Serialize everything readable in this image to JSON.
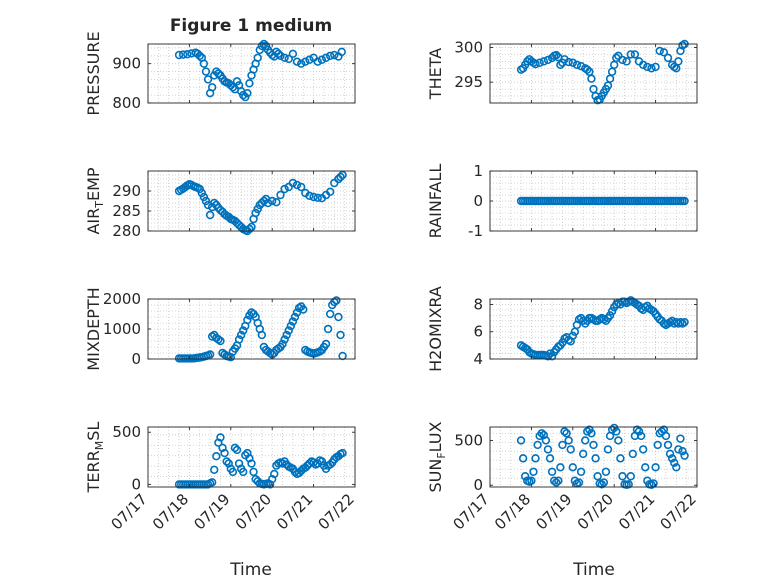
{
  "figure_title": "Figure 1 medium",
  "colors": {
    "marker": "#0072BD",
    "axes": "#262626",
    "grid": "#c8c8c8"
  },
  "x_axis": {
    "label": "Time",
    "tick_labels": [
      "07/17",
      "07/18",
      "07/19",
      "07/20",
      "07/21",
      "07/22"
    ],
    "range_days": [
      0,
      5
    ]
  },
  "chart_data": [
    {
      "type": "scatter",
      "name": "pressure",
      "ylabel": "PRESSURE",
      "ylim": [
        800,
        950
      ],
      "yticks": [
        800,
        900
      ],
      "ytick_labels": [
        "800",
        "900"
      ],
      "x": [
        0.75,
        0.85,
        0.95,
        1.05,
        1.15,
        1.2,
        1.25,
        1.3,
        1.35,
        1.4,
        1.45,
        1.5,
        1.55,
        1.6,
        1.65,
        1.7,
        1.75,
        1.8,
        1.85,
        1.9,
        1.95,
        2.0,
        2.05,
        2.1,
        2.15,
        2.2,
        2.25,
        2.3,
        2.35,
        2.4,
        2.45,
        2.5,
        2.55,
        2.6,
        2.65,
        2.7,
        2.75,
        2.8,
        2.85,
        2.9,
        2.95,
        3.0,
        3.05,
        3.1,
        3.15,
        3.2,
        3.3,
        3.4,
        3.5,
        3.6,
        3.7,
        3.8,
        3.9,
        4.0,
        4.1,
        4.2,
        4.3,
        4.4,
        4.5,
        4.6,
        4.68
      ],
      "y": [
        922,
        923,
        924,
        926,
        928,
        925,
        920,
        915,
        900,
        880,
        860,
        825,
        840,
        870,
        880,
        875,
        870,
        862,
        855,
        852,
        850,
        845,
        840,
        835,
        855,
        845,
        830,
        820,
        815,
        825,
        850,
        870,
        885,
        900,
        915,
        935,
        945,
        950,
        945,
        935,
        928,
        922,
        918,
        930,
        925,
        920,
        915,
        912,
        925,
        905,
        900,
        905,
        910,
        915,
        905,
        910,
        915,
        920,
        922,
        918,
        930
      ]
    },
    {
      "type": "scatter",
      "name": "theta",
      "ylabel": "THETA",
      "ylim": [
        292,
        300.5
      ],
      "yticks": [
        295,
        300
      ],
      "ytick_labels": [
        "295",
        "300"
      ],
      "x": [
        0.75,
        0.8,
        0.85,
        0.9,
        0.95,
        1.0,
        1.05,
        1.1,
        1.2,
        1.3,
        1.4,
        1.5,
        1.55,
        1.6,
        1.65,
        1.7,
        1.75,
        1.8,
        1.9,
        2.0,
        2.1,
        2.2,
        2.3,
        2.35,
        2.4,
        2.45,
        2.5,
        2.55,
        2.6,
        2.65,
        2.7,
        2.75,
        2.8,
        2.85,
        2.9,
        2.95,
        3.0,
        3.05,
        3.1,
        3.2,
        3.3,
        3.4,
        3.5,
        3.6,
        3.7,
        3.8,
        3.9,
        4.0,
        4.1,
        4.2,
        4.3,
        4.4,
        4.45,
        4.5,
        4.55,
        4.6,
        4.65,
        4.7
      ],
      "y": [
        296.8,
        297,
        297.5,
        298,
        298.3,
        298,
        297.8,
        297.6,
        297.8,
        298,
        298.2,
        298.5,
        298.8,
        298.9,
        298.6,
        297.5,
        297.8,
        298.3,
        297.9,
        297.8,
        297.5,
        297.3,
        297,
        296.8,
        296.5,
        295.5,
        294,
        293,
        292.4,
        292.5,
        293,
        293.5,
        294,
        294.5,
        295.5,
        296.5,
        297.5,
        298.5,
        298.8,
        298.2,
        298,
        299,
        299,
        298,
        297.5,
        297.2,
        297,
        297.2,
        299.5,
        299.3,
        298.5,
        297.5,
        297.2,
        297,
        298,
        299.5,
        300.3,
        300.5
      ]
    },
    {
      "type": "scatter",
      "name": "air_temp",
      "ylabel": "AIR_TEMP",
      "ylim": [
        280,
        295
      ],
      "yticks": [
        280,
        285,
        290
      ],
      "ytick_labels": [
        "280",
        "285",
        "290"
      ],
      "x": [
        0.75,
        0.8,
        0.85,
        0.9,
        0.95,
        1.0,
        1.05,
        1.1,
        1.15,
        1.2,
        1.25,
        1.3,
        1.35,
        1.4,
        1.45,
        1.5,
        1.55,
        1.6,
        1.65,
        1.7,
        1.75,
        1.8,
        1.85,
        1.9,
        1.95,
        2.0,
        2.05,
        2.1,
        2.15,
        2.2,
        2.25,
        2.3,
        2.35,
        2.4,
        2.45,
        2.5,
        2.55,
        2.6,
        2.65,
        2.7,
        2.75,
        2.8,
        2.85,
        2.9,
        3.0,
        3.1,
        3.2,
        3.3,
        3.4,
        3.5,
        3.6,
        3.7,
        3.8,
        3.9,
        4.0,
        4.1,
        4.2,
        4.3,
        4.4,
        4.5,
        4.6,
        4.65,
        4.7
      ],
      "y": [
        290,
        290.3,
        290.6,
        291,
        291.4,
        291.7,
        291.5,
        291.2,
        291,
        290.8,
        290.5,
        289.5,
        288.5,
        287.5,
        286.5,
        284,
        286,
        287,
        286.5,
        285.8,
        285.2,
        284.8,
        284.2,
        283.8,
        283.5,
        283,
        282.8,
        282.5,
        282,
        281.5,
        281,
        280.5,
        280.2,
        280,
        280.5,
        281,
        283,
        284.5,
        285.5,
        286.5,
        287,
        287.5,
        288,
        287,
        287.5,
        287.2,
        289,
        290.5,
        291,
        292,
        291.5,
        291,
        289.5,
        288.8,
        288.5,
        288.3,
        288.2,
        289,
        289.8,
        292,
        293,
        293.5,
        294
      ]
    },
    {
      "type": "scatter",
      "name": "rainfall",
      "ylabel": "RAINFALL",
      "ylim": [
        -1,
        1
      ],
      "yticks": [
        -1,
        0,
        1
      ],
      "ytick_labels": [
        "-1",
        "0",
        "1"
      ],
      "x_range": [
        0.75,
        4.7
      ],
      "count": 80,
      "constant": 0
    },
    {
      "type": "scatter",
      "name": "mixdepth",
      "ylabel": "MIXDEPTH",
      "ylim": [
        0,
        2000
      ],
      "yticks": [
        0,
        1000,
        2000
      ],
      "ytick_labels": [
        "0",
        "1000",
        "2000"
      ],
      "x": [
        0.75,
        0.8,
        0.85,
        0.9,
        0.95,
        1.0,
        1.05,
        1.1,
        1.15,
        1.2,
        1.25,
        1.3,
        1.35,
        1.4,
        1.45,
        1.5,
        1.55,
        1.6,
        1.65,
        1.7,
        1.75,
        1.8,
        1.85,
        1.9,
        1.95,
        2.0,
        2.05,
        2.1,
        2.15,
        2.2,
        2.25,
        2.3,
        2.35,
        2.4,
        2.45,
        2.5,
        2.55,
        2.6,
        2.65,
        2.7,
        2.75,
        2.8,
        2.85,
        2.9,
        2.95,
        3.0,
        3.05,
        3.1,
        3.15,
        3.2,
        3.25,
        3.3,
        3.35,
        3.4,
        3.45,
        3.5,
        3.55,
        3.6,
        3.65,
        3.7,
        3.75,
        3.8,
        3.85,
        3.9,
        3.95,
        4.0,
        4.05,
        4.1,
        4.15,
        4.2,
        4.25,
        4.3,
        4.35,
        4.4,
        4.45,
        4.5,
        4.55,
        4.6,
        4.65,
        4.7
      ],
      "y": [
        20,
        20,
        20,
        20,
        20,
        20,
        20,
        20,
        30,
        40,
        50,
        60,
        80,
        100,
        120,
        150,
        750,
        800,
        700,
        650,
        600,
        200,
        150,
        100,
        80,
        60,
        250,
        350,
        450,
        650,
        800,
        950,
        1100,
        1300,
        1450,
        1550,
        1500,
        1400,
        1200,
        1000,
        800,
        400,
        300,
        250,
        200,
        150,
        200,
        300,
        350,
        400,
        500,
        650,
        800,
        950,
        1100,
        1250,
        1400,
        1550,
        1700,
        1750,
        1650,
        300,
        250,
        220,
        200,
        180,
        200,
        220,
        250,
        300,
        400,
        500,
        1000,
        1500,
        1800,
        1900,
        1950,
        1400,
        800,
        100
      ]
    },
    {
      "type": "scatter",
      "name": "h2omixra",
      "ylabel": "H2OMIXRA",
      "ylim": [
        4,
        8.4
      ],
      "yticks": [
        4,
        6,
        8
      ],
      "ytick_labels": [
        "4",
        "6",
        "8"
      ],
      "x": [
        0.75,
        0.8,
        0.85,
        0.9,
        0.95,
        1.0,
        1.05,
        1.1,
        1.15,
        1.2,
        1.25,
        1.3,
        1.35,
        1.4,
        1.45,
        1.5,
        1.55,
        1.6,
        1.65,
        1.7,
        1.75,
        1.8,
        1.85,
        1.9,
        1.95,
        2.0,
        2.05,
        2.1,
        2.15,
        2.2,
        2.25,
        2.3,
        2.35,
        2.4,
        2.45,
        2.5,
        2.55,
        2.6,
        2.65,
        2.7,
        2.75,
        2.8,
        2.85,
        2.9,
        2.95,
        3.0,
        3.05,
        3.1,
        3.15,
        3.2,
        3.25,
        3.3,
        3.35,
        3.4,
        3.45,
        3.5,
        3.55,
        3.6,
        3.65,
        3.7,
        3.75,
        3.8,
        3.85,
        3.9,
        3.95,
        4.0,
        4.05,
        4.1,
        4.15,
        4.2,
        4.25,
        4.3,
        4.35,
        4.4,
        4.45,
        4.5,
        4.55,
        4.6,
        4.65,
        4.7
      ],
      "y": [
        5,
        4.9,
        4.8,
        4.7,
        4.5,
        4.4,
        4.35,
        4.3,
        4.3,
        4.3,
        4.3,
        4.3,
        4.25,
        4.2,
        4.4,
        4.2,
        4.5,
        4.7,
        4.9,
        5,
        5.2,
        5.5,
        5.6,
        5.4,
        5.3,
        5.7,
        6,
        6.5,
        6.9,
        7,
        6.8,
        6.6,
        6.8,
        7,
        7,
        6.9,
        6.8,
        6.8,
        6.9,
        7,
        6.9,
        6.8,
        7,
        7.2,
        7.5,
        7.8,
        8,
        8.1,
        8,
        8.2,
        8.2,
        8.1,
        8.2,
        8.3,
        8.2,
        8.1,
        8,
        7.9,
        7.7,
        7.6,
        7.8,
        7.9,
        7.7,
        7.6,
        7.5,
        7.3,
        7.1,
        6.9,
        6.8,
        6.6,
        6.5,
        6.6,
        6.7,
        6.8,
        6.6,
        6.7,
        6.6,
        6.7,
        6.6,
        6.7
      ]
    },
    {
      "type": "scatter",
      "name": "terr_msl",
      "ylabel": "TERR_MSL",
      "ylim": [
        -25,
        550
      ],
      "yticks": [
        0,
        500
      ],
      "ytick_labels": [
        "0",
        "500"
      ],
      "x": [
        0.75,
        0.8,
        0.85,
        0.9,
        0.95,
        1.0,
        1.05,
        1.1,
        1.15,
        1.2,
        1.25,
        1.3,
        1.35,
        1.4,
        1.45,
        1.5,
        1.55,
        1.6,
        1.65,
        1.7,
        1.75,
        1.8,
        1.85,
        1.9,
        1.95,
        2.0,
        2.05,
        2.1,
        2.15,
        2.2,
        2.25,
        2.3,
        2.35,
        2.4,
        2.45,
        2.5,
        2.55,
        2.6,
        2.65,
        2.7,
        2.75,
        2.8,
        2.85,
        2.9,
        2.95,
        3.0,
        3.05,
        3.1,
        3.15,
        3.2,
        3.25,
        3.3,
        3.35,
        3.4,
        3.45,
        3.5,
        3.55,
        3.6,
        3.65,
        3.7,
        3.75,
        3.8,
        3.85,
        3.9,
        3.95,
        4.0,
        4.05,
        4.1,
        4.15,
        4.2,
        4.25,
        4.3,
        4.35,
        4.4,
        4.45,
        4.5,
        4.55,
        4.6,
        4.65,
        4.7
      ],
      "y": [
        0,
        0,
        0,
        0,
        0,
        0,
        0,
        0,
        0,
        0,
        0,
        0,
        0,
        0,
        0,
        10,
        20,
        140,
        270,
        400,
        450,
        350,
        300,
        220,
        200,
        150,
        120,
        350,
        330,
        200,
        150,
        120,
        280,
        300,
        250,
        200,
        120,
        50,
        30,
        10,
        5,
        0,
        5,
        10,
        0,
        50,
        100,
        180,
        200,
        210,
        200,
        220,
        190,
        170,
        160,
        150,
        120,
        100,
        110,
        130,
        150,
        160,
        180,
        200,
        220,
        210,
        190,
        200,
        230,
        220,
        180,
        150,
        180,
        190,
        210,
        240,
        260,
        270,
        290,
        300
      ]
    },
    {
      "type": "scatter",
      "name": "sun_flux",
      "ylabel": "SUN_FLUX",
      "ylim": [
        -20,
        650
      ],
      "yticks": [
        0,
        500
      ],
      "ytick_labels": [
        "0",
        "500"
      ],
      "x": [
        0.75,
        0.8,
        0.85,
        0.9,
        0.95,
        1.0,
        1.05,
        1.1,
        1.15,
        1.2,
        1.25,
        1.3,
        1.35,
        1.4,
        1.45,
        1.5,
        1.55,
        1.6,
        1.65,
        1.7,
        1.75,
        1.8,
        1.85,
        1.9,
        1.95,
        2.0,
        2.05,
        2.1,
        2.15,
        2.2,
        2.25,
        2.3,
        2.35,
        2.4,
        2.45,
        2.5,
        2.55,
        2.6,
        2.65,
        2.7,
        2.75,
        2.8,
        2.85,
        2.9,
        2.95,
        3.0,
        3.05,
        3.1,
        3.15,
        3.2,
        3.25,
        3.3,
        3.35,
        3.4,
        3.45,
        3.5,
        3.55,
        3.6,
        3.65,
        3.7,
        3.75,
        3.8,
        3.85,
        3.9,
        3.95,
        4.0,
        4.05,
        4.1,
        4.15,
        4.2,
        4.25,
        4.3,
        4.35,
        4.4,
        4.45,
        4.5,
        4.55,
        4.6,
        4.65,
        4.7
      ],
      "y": [
        500,
        300,
        100,
        50,
        40,
        50,
        150,
        300,
        450,
        550,
        580,
        560,
        500,
        400,
        300,
        150,
        50,
        30,
        50,
        200,
        450,
        600,
        580,
        500,
        400,
        200,
        50,
        20,
        30,
        150,
        350,
        500,
        600,
        620,
        580,
        450,
        300,
        100,
        20,
        10,
        30,
        150,
        400,
        550,
        620,
        640,
        600,
        500,
        300,
        100,
        10,
        5,
        10,
        100,
        350,
        550,
        620,
        600,
        550,
        400,
        200,
        50,
        10,
        5,
        20,
        200,
        450,
        580,
        600,
        620,
        550,
        450,
        350,
        300,
        250,
        200,
        400,
        520,
        380,
        330
      ]
    }
  ]
}
